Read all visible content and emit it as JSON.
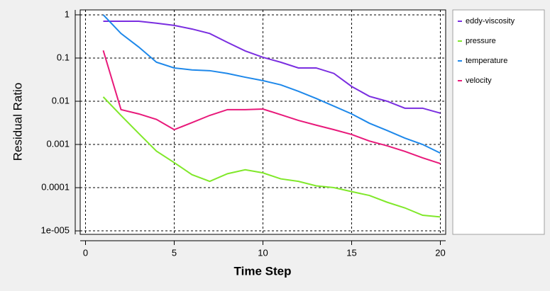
{
  "chart_data": {
    "type": "line",
    "ylabel": "Residual Ratio",
    "xlabel": "Time Step",
    "x": [
      1,
      2,
      3,
      4,
      5,
      6,
      7,
      8,
      9,
      10,
      11,
      12,
      13,
      14,
      15,
      16,
      17,
      18,
      19,
      20
    ],
    "series": [
      {
        "name": "eddy-viscosity",
        "color": "#7a2ee0",
        "values": [
          0.71,
          0.71,
          0.71,
          0.64,
          0.57,
          0.47,
          0.37,
          0.23,
          0.146,
          0.104,
          0.08,
          0.059,
          0.059,
          0.044,
          0.022,
          0.013,
          0.01,
          0.0069,
          0.0069,
          0.0053
        ]
      },
      {
        "name": "pressure",
        "color": "#80e82a",
        "values": [
          0.0126,
          0.0047,
          0.0018,
          0.0007,
          0.00038,
          0.0002,
          0.00014,
          0.00021,
          0.00026,
          0.00022,
          0.00016,
          0.00014,
          0.00011,
          0.0001,
          8.1e-05,
          6.6e-05,
          4.6e-05,
          3.4e-05,
          2.3e-05,
          2.1e-05
        ]
      },
      {
        "name": "temperature",
        "color": "#1e88ea",
        "values": [
          1.0,
          0.37,
          0.18,
          0.08,
          0.059,
          0.053,
          0.051,
          0.044,
          0.036,
          0.03,
          0.024,
          0.017,
          0.0116,
          0.0077,
          0.0051,
          0.0031,
          0.0021,
          0.0014,
          0.001,
          0.00063
        ]
      },
      {
        "name": "velocity",
        "color": "#e8197a",
        "values": [
          0.15,
          0.0064,
          0.0051,
          0.0038,
          0.0022,
          0.0032,
          0.0047,
          0.0064,
          0.0064,
          0.0066,
          0.0049,
          0.0036,
          0.0028,
          0.0022,
          0.0017,
          0.0012,
          0.00093,
          0.00069,
          0.00049,
          0.00036
        ]
      }
    ],
    "xlim": [
      -0.3,
      20.3
    ],
    "xticks": [
      0,
      5,
      10,
      15,
      20
    ],
    "ylim": [
      1.3,
      8.3e-06
    ],
    "yticks": [
      1,
      0.1,
      0.01,
      0.001,
      0.0001,
      {
        "value": 1e-05,
        "label": "1e-005"
      }
    ],
    "log_y": true,
    "grid": true,
    "legend": "right"
  }
}
